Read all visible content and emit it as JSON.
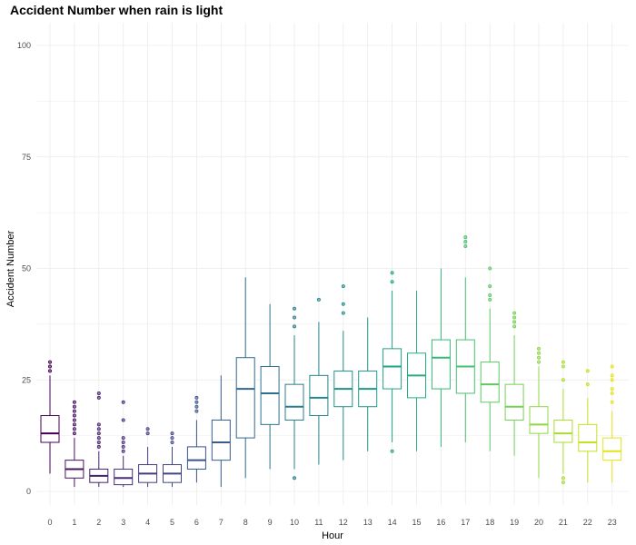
{
  "chart_data": {
    "type": "boxplot",
    "title": "Accident Number when rain is light",
    "xlabel": "Hour",
    "ylabel": "Accident Number",
    "ylim": [
      0,
      100
    ],
    "yticks": [
      0,
      25,
      50,
      75,
      100
    ],
    "grid": true,
    "legend": "none",
    "colors": [
      "#440154",
      "#471164",
      "#481F70",
      "#472D7B",
      "#443A83",
      "#404688",
      "#3B528B",
      "#365D8D",
      "#31688E",
      "#2C728E",
      "#287C8E",
      "#24868E",
      "#21908C",
      "#1F9A8A",
      "#20A486",
      "#27AD81",
      "#35B779",
      "#47C16E",
      "#5DC863",
      "#75D054",
      "#8FD744",
      "#AADC32",
      "#C7E020",
      "#E3E418"
    ],
    "boxes": [
      {
        "hour": "0",
        "whisker_low": 4,
        "q1": 11,
        "median": 13,
        "q3": 17,
        "whisker_high": 26,
        "outliers": [
          27,
          28,
          29
        ]
      },
      {
        "hour": "1",
        "whisker_low": 1,
        "q1": 3,
        "median": 5,
        "q3": 7,
        "whisker_high": 12,
        "outliers": [
          13,
          14,
          15,
          16,
          17,
          18,
          19,
          20
        ]
      },
      {
        "hour": "2",
        "whisker_low": 1,
        "q1": 2,
        "median": 3.5,
        "q3": 5,
        "whisker_high": 9,
        "outliers": [
          10,
          11,
          12,
          13,
          14,
          15,
          21,
          22
        ]
      },
      {
        "hour": "3",
        "whisker_low": 1,
        "q1": 1.5,
        "median": 3,
        "q3": 5,
        "whisker_high": 8,
        "outliers": [
          9,
          10,
          11,
          12,
          16,
          20
        ]
      },
      {
        "hour": "4",
        "whisker_low": 1,
        "q1": 2,
        "median": 4,
        "q3": 6,
        "whisker_high": 10,
        "outliers": [
          13,
          14
        ]
      },
      {
        "hour": "5",
        "whisker_low": 1,
        "q1": 2,
        "median": 4,
        "q3": 6,
        "whisker_high": 10,
        "outliers": [
          11,
          12,
          13
        ]
      },
      {
        "hour": "6",
        "whisker_low": 2,
        "q1": 5,
        "median": 7,
        "q3": 10,
        "whisker_high": 16,
        "outliers": [
          18,
          19,
          20,
          21
        ]
      },
      {
        "hour": "7",
        "whisker_low": 1,
        "q1": 7,
        "median": 11,
        "q3": 16,
        "whisker_high": 26,
        "outliers": []
      },
      {
        "hour": "8",
        "whisker_low": 3,
        "q1": 12,
        "median": 23,
        "q3": 30,
        "whisker_high": 48,
        "outliers": []
      },
      {
        "hour": "9",
        "whisker_low": 5,
        "q1": 15,
        "median": 22,
        "q3": 28,
        "whisker_high": 42,
        "outliers": []
      },
      {
        "hour": "10",
        "whisker_low": 5,
        "q1": 16,
        "median": 19,
        "q3": 24,
        "whisker_high": 35,
        "outliers": [
          3,
          37,
          39,
          41
        ]
      },
      {
        "hour": "11",
        "whisker_low": 6,
        "q1": 17,
        "median": 21,
        "q3": 26,
        "whisker_high": 38,
        "outliers": [
          43
        ]
      },
      {
        "hour": "12",
        "whisker_low": 7,
        "q1": 19,
        "median": 23,
        "q3": 27,
        "whisker_high": 36,
        "outliers": [
          40,
          42,
          46
        ]
      },
      {
        "hour": "13",
        "whisker_low": 9,
        "q1": 19,
        "median": 23,
        "q3": 27,
        "whisker_high": 39,
        "outliers": []
      },
      {
        "hour": "14",
        "whisker_low": 11,
        "q1": 23,
        "median": 28,
        "q3": 32,
        "whisker_high": 45,
        "outliers": [
          9,
          47,
          49
        ]
      },
      {
        "hour": "15",
        "whisker_low": 9,
        "q1": 21,
        "median": 26,
        "q3": 31,
        "whisker_high": 45,
        "outliers": []
      },
      {
        "hour": "16",
        "whisker_low": 10,
        "q1": 23,
        "median": 30,
        "q3": 34,
        "whisker_high": 50,
        "outliers": []
      },
      {
        "hour": "17",
        "whisker_low": 11,
        "q1": 22,
        "median": 28,
        "q3": 34,
        "whisker_high": 48,
        "outliers": [
          55,
          56,
          57
        ]
      },
      {
        "hour": "18",
        "whisker_low": 9,
        "q1": 20,
        "median": 24,
        "q3": 29,
        "whisker_high": 41,
        "outliers": [
          43,
          44,
          46,
          50
        ]
      },
      {
        "hour": "19",
        "whisker_low": 8,
        "q1": 16,
        "median": 19,
        "q3": 24,
        "whisker_high": 35,
        "outliers": [
          37,
          38,
          39,
          40
        ]
      },
      {
        "hour": "20",
        "whisker_low": 3,
        "q1": 13,
        "median": 15,
        "q3": 19,
        "whisker_high": 28,
        "outliers": [
          29,
          30,
          31,
          32
        ]
      },
      {
        "hour": "21",
        "whisker_low": 4,
        "q1": 11,
        "median": 13,
        "q3": 16,
        "whisker_high": 23,
        "outliers": [
          2,
          3,
          25,
          28,
          29
        ]
      },
      {
        "hour": "22",
        "whisker_low": 2,
        "q1": 9,
        "median": 11,
        "q3": 15,
        "whisker_high": 21,
        "outliers": [
          24,
          27
        ]
      },
      {
        "hour": "23",
        "whisker_low": 2,
        "q1": 7,
        "median": 9,
        "q3": 12,
        "whisker_high": 18,
        "outliers": [
          20,
          22,
          23,
          25,
          26,
          28
        ]
      }
    ]
  }
}
